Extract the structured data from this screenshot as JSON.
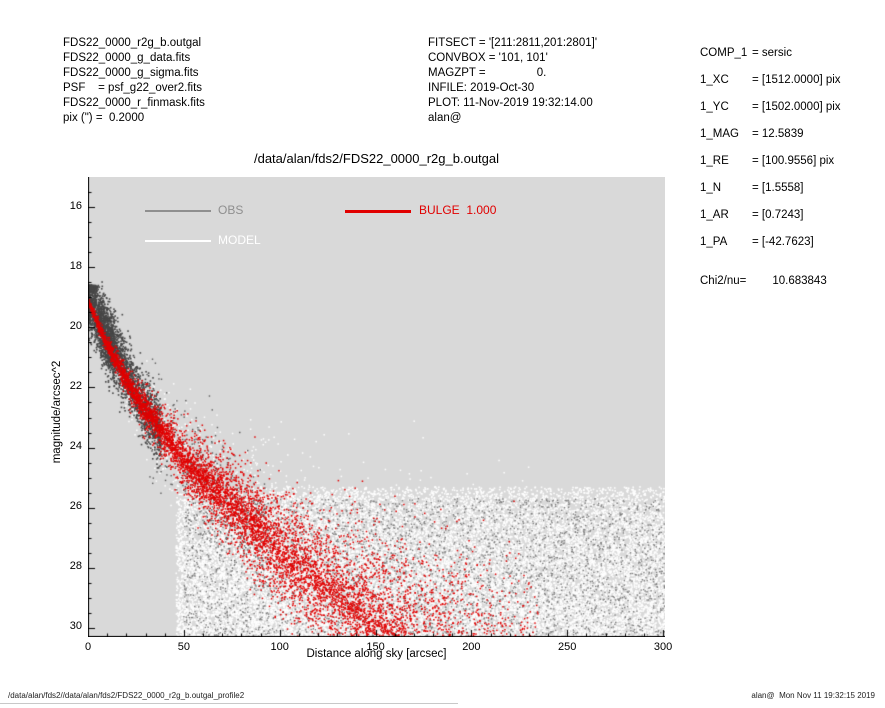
{
  "header_left": {
    "lines": [
      "FDS22_0000_r2g_b.outgal",
      "FDS22_0000_g_data.fits",
      "FDS22_0000_g_sigma.fits",
      "PSF    = psf_g22_over2.fits",
      "FDS22_0000_r_finmask.fits",
      "pix (\") =  0.2000"
    ]
  },
  "header_mid": {
    "lines": [
      "FITSECT = '[211:2811,201:2801]'",
      "CONVBOX = '101, 101'",
      "MAGZPT =                0.",
      "INFILE: 2019-Oct-30",
      "PLOT: 11-Nov-2019 19:32:14.00",
      "alan@"
    ]
  },
  "params_panel": {
    "rows": [
      {
        "label": "COMP_1",
        "value": "=  sersic"
      },
      {
        "label": "1_XC",
        "value": "=  [1512.0000] pix"
      },
      {
        "label": "1_YC",
        "value": "=  [1502.0000] pix"
      },
      {
        "label": "1_MAG",
        "value": "=  12.5839"
      },
      {
        "label": "1_RE",
        "value": "=  [100.9556] pix"
      },
      {
        "label": "1_N",
        "value": "=  [1.5558]"
      },
      {
        "label": "1_AR",
        "value": "=  [0.7243]"
      },
      {
        "label": "1_PA",
        "value": "=  [-42.7623]"
      }
    ],
    "chi2_label": "Chi2/nu=",
    "chi2_value": "10.683843"
  },
  "footer": {
    "left": "/data/alan/fds2//data/alan/fds2/FDS22_0000_r2g_b.outgal_profile2",
    "right": "alan@  Mon Nov 11 19:32:15 2019"
  },
  "chart_data": {
    "type": "scatter",
    "title": "/data/alan/fds2/FDS22_0000_r2g_b.outgal",
    "xlabel": "Distance along sky [arcsec]",
    "ylabel": "magnitude/arcsec^2",
    "xlim": [
      0,
      301
    ],
    "ylim": [
      30.3,
      15.0
    ],
    "y_axis_inverted": true,
    "xticks": [
      0,
      50,
      100,
      150,
      200,
      250,
      300
    ],
    "yticks": [
      16,
      18,
      20,
      22,
      24,
      26,
      28,
      30
    ],
    "background": "#d9d9d9",
    "grid": false,
    "legend_position": "inside-top",
    "legend": [
      {
        "label": "OBS",
        "color": "#8f8f8f"
      },
      {
        "label": "MODEL",
        "color": "#ffffff"
      },
      {
        "label": "BULGE  1.000",
        "color": "#e10000"
      }
    ],
    "series": [
      {
        "name": "OBS",
        "color": "#474747",
        "noise_color": "#7d7d7d",
        "profile": [
          [
            0,
            18.85
          ],
          [
            3,
            19.3
          ],
          [
            6,
            19.8
          ],
          [
            10,
            20.3
          ],
          [
            15,
            20.9
          ],
          [
            20,
            21.5
          ],
          [
            25,
            22.1
          ],
          [
            30,
            22.7
          ],
          [
            38,
            23.5
          ]
        ],
        "inner_points": 2600,
        "inner_scatter": 0.55,
        "inner_rmax": 38,
        "trail_points": 450,
        "noise_points": 3000,
        "noise_r": [
          50,
          301
        ],
        "noise_mag": [
          25.7,
          30.3
        ]
      },
      {
        "name": "MODEL",
        "color": "#ffffff",
        "band_points": 2600,
        "band_rmax": 235,
        "noise_points": 20000,
        "noise_r": [
          46,
          301
        ],
        "noise_mag": [
          25.3,
          30.3
        ]
      },
      {
        "name": "BULGE",
        "bulge_weight": "1.000",
        "color": "#e10000",
        "profile": [
          [
            0,
            19.1
          ],
          [
            10,
            20.6
          ],
          [
            25,
            22.3
          ],
          [
            50,
            24.4
          ],
          [
            75,
            25.9
          ],
          [
            100,
            27.4
          ],
          [
            125,
            28.7
          ],
          [
            150,
            29.9
          ],
          [
            165,
            30.5
          ]
        ],
        "band_points": 7000,
        "band_rmax": 235,
        "band_width": [
          0.05,
          2.3
        ]
      }
    ]
  }
}
